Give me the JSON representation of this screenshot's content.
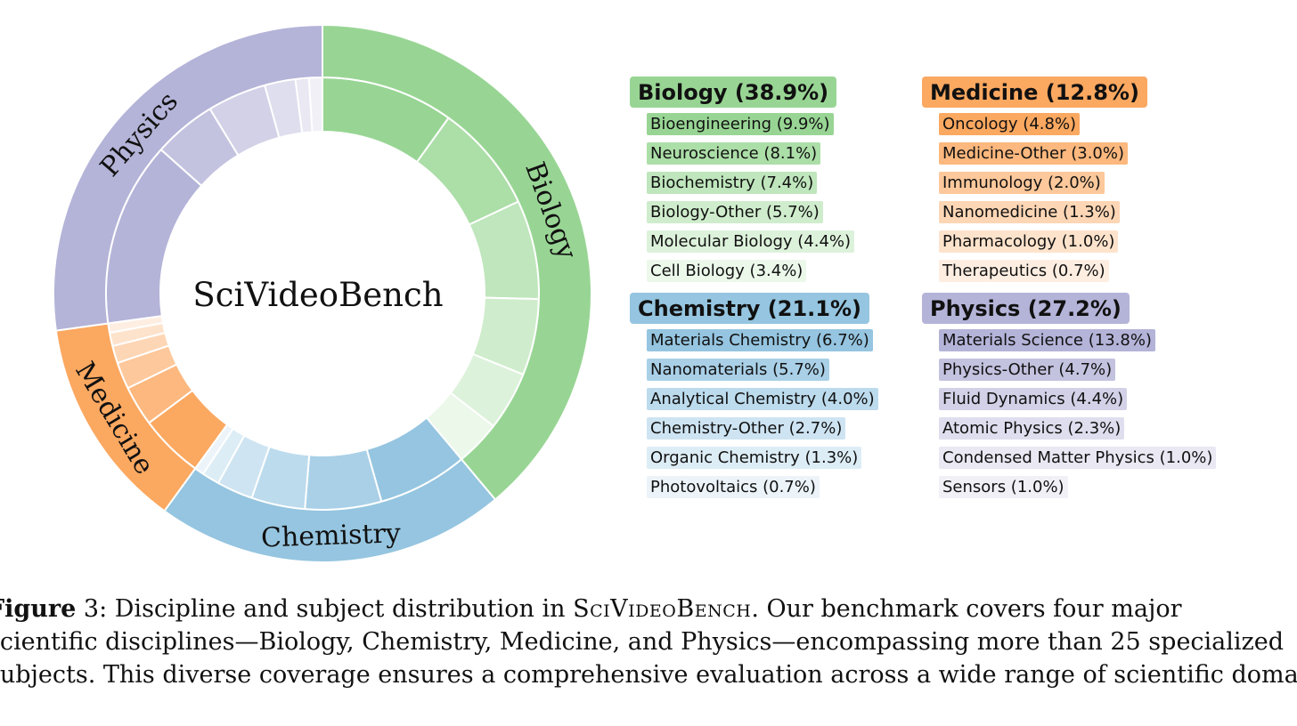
{
  "chart_data": {
    "type": "pie",
    "subtype": "nested-donut",
    "center_label": "SciVideoBench",
    "categories": [
      {
        "name": "Biology",
        "header": "Biology (38.9%)",
        "value": 38.9,
        "color": "#98d594",
        "subjects": [
          {
            "label": "Bioengineering (9.9%)",
            "value": 9.9,
            "color": "#98d594"
          },
          {
            "label": "Neuroscience (8.1%)",
            "value": 8.1,
            "color": "#acdea8"
          },
          {
            "label": "Biochemistry (7.4%)",
            "value": 7.4,
            "color": "#bfe6bc"
          },
          {
            "label": "Biology-Other (5.7%)",
            "value": 5.7,
            "color": "#cfedcc"
          },
          {
            "label": "Molecular Biology (4.4%)",
            "value": 4.4,
            "color": "#ddf2db"
          },
          {
            "label": "Cell Biology (3.4%)",
            "value": 3.4,
            "color": "#ebf8ea"
          }
        ]
      },
      {
        "name": "Chemistry",
        "header": "Chemistry (21.1%)",
        "value": 21.1,
        "color": "#95c5e0",
        "subjects": [
          {
            "label": "Materials Chemistry (6.7%)",
            "value": 6.7,
            "color": "#95c5e0"
          },
          {
            "label": "Nanomaterials (5.7%)",
            "value": 5.7,
            "color": "#a9d0e7"
          },
          {
            "label": "Analytical Chemistry (4.0%)",
            "value": 4.0,
            "color": "#bcdbed"
          },
          {
            "label": "Chemistry-Other (2.7%)",
            "value": 2.7,
            "color": "#cee4f2"
          },
          {
            "label": "Organic Chemistry (1.3%)",
            "value": 1.3,
            "color": "#ddedf6"
          },
          {
            "label": "Photovoltaics (0.7%)",
            "value": 0.7,
            "color": "#ecf4fa"
          }
        ]
      },
      {
        "name": "Medicine",
        "header": "Medicine (12.8%)",
        "value": 12.8,
        "color": "#fba860",
        "subjects": [
          {
            "label": "Oncology (4.8%)",
            "value": 4.8,
            "color": "#fba860"
          },
          {
            "label": "Medicine-Other (3.0%)",
            "value": 3.0,
            "color": "#fcb87e"
          },
          {
            "label": "Immunology (2.0%)",
            "value": 2.0,
            "color": "#fdc89b"
          },
          {
            "label": "Nanomedicine (1.3%)",
            "value": 1.3,
            "color": "#fdd6b5"
          },
          {
            "label": "Pharmacology (1.0%)",
            "value": 1.0,
            "color": "#fee3cc"
          },
          {
            "label": "Therapeutics (0.7%)",
            "value": 0.7,
            "color": "#feeee2"
          }
        ]
      },
      {
        "name": "Physics",
        "header": "Physics (27.2%)",
        "value": 27.2,
        "color": "#b4b3d8",
        "subjects": [
          {
            "label": "Materials Science (13.8%)",
            "value": 13.8,
            "color": "#b4b3d8"
          },
          {
            "label": "Physics-Other (4.7%)",
            "value": 4.7,
            "color": "#c3c2df"
          },
          {
            "label": "Fluid Dynamics (4.4%)",
            "value": 4.4,
            "color": "#d2d1e7"
          },
          {
            "label": "Atomic Physics (2.3%)",
            "value": 2.3,
            "color": "#dfdeee"
          },
          {
            "label": "Condensed Matter Physics (1.0%)",
            "value": 1.0,
            "color": "#e9e8f3"
          },
          {
            "label": "Sensors (1.0%)",
            "value": 1.0,
            "color": "#f1f0f7"
          }
        ]
      }
    ]
  },
  "caption": {
    "label": "Figure",
    "number": " 3: Discipline and subject distribution in  ",
    "benchmark": "SciVideoBench",
    "line1_rest": ". Our benchmark covers four major",
    "line2": "scientific disciplines—Biology, Chemistry, Medicine, and Physics—encompassing more than 25 specialized",
    "line3": "subjects. This diverse coverage ensures a comprehensive evaluation across a wide range of scientific domains."
  }
}
